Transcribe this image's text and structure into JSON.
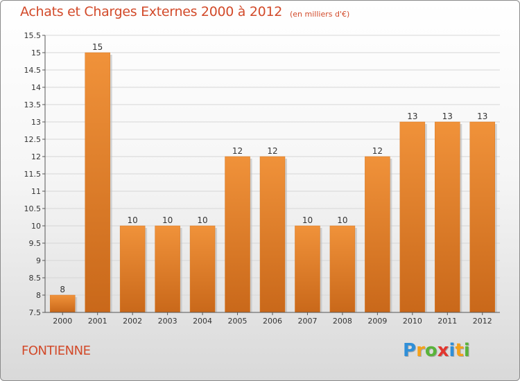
{
  "chart_data": {
    "type": "bar",
    "title": "Achats et Charges Externes 2000 à 2012",
    "subtitle": "(en milliers d'€)",
    "categories": [
      "2000",
      "2001",
      "2002",
      "2003",
      "2004",
      "2005",
      "2006",
      "2007",
      "2008",
      "2009",
      "2010",
      "2011",
      "2012"
    ],
    "values": [
      8,
      15,
      10,
      10,
      10,
      12,
      12,
      10,
      10,
      12,
      13,
      13,
      13
    ],
    "value_labels": [
      "8",
      "15",
      "10",
      "10",
      "10",
      "12",
      "12",
      "10",
      "10",
      "12",
      "13",
      "13",
      "13"
    ],
    "ylim": [
      7.5,
      15.5
    ],
    "yticks": [
      7.5,
      8,
      8.5,
      9,
      9.5,
      10,
      10.5,
      11,
      11.5,
      12,
      12.5,
      13,
      13.5,
      14,
      14.5,
      15,
      15.5
    ],
    "ytick_labels": [
      "7.5",
      "8",
      "8.5",
      "9",
      "9.5",
      "10",
      "10.5",
      "11",
      "11.5",
      "12",
      "12.5",
      "13",
      "13.5",
      "14",
      "14.5",
      "15",
      "15.5"
    ],
    "grid": true,
    "bar_color": "#f0923a",
    "bar_color_dark": "#c9681a"
  },
  "commune": "FONTIENNE",
  "brand": {
    "letters": [
      "P",
      "r",
      "o",
      "x",
      "i",
      "t",
      "i"
    ],
    "colors": [
      "#2f8fd8",
      "#f5a11a",
      "#59b33a",
      "#e2362f",
      "#2f8fd8",
      "#f5a11a",
      "#59b33a"
    ]
  }
}
